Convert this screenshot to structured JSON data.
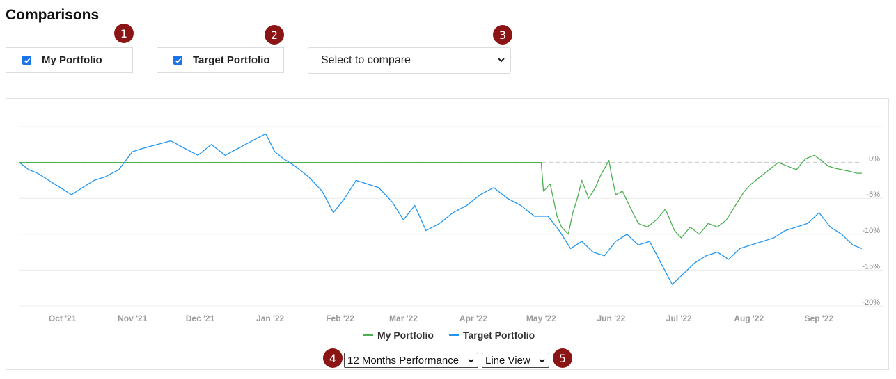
{
  "page": {
    "title": "Comparisons"
  },
  "controls": {
    "my_portfolio_label": "My Portfolio",
    "target_portfolio_label": "Target Portfolio",
    "compare_select_value": "Select to compare",
    "period_select_value": "12 Months Performance",
    "view_select_value": "Line View"
  },
  "badges": [
    "1",
    "2",
    "3",
    "4",
    "5"
  ],
  "colors": {
    "my_portfolio": "#4caf50",
    "target_portfolio": "#2196f3",
    "badge": "#8b1414",
    "checkbox": "#1a73e8"
  },
  "icons": {
    "checkbox": "check-icon",
    "dropdown": "chevron-down-icon"
  },
  "chart_data": {
    "type": "line",
    "title": "",
    "xlabel": "",
    "ylabel": "",
    "x_ticks": [
      "Oct '21",
      "Nov '21",
      "Dec '21",
      "Jan '22",
      "Feb '22",
      "Mar '22",
      "Apr '22",
      "May '22",
      "Jun '22",
      "Jul '22",
      "Aug '22",
      "Sep '22"
    ],
    "y_ticks": [
      "0%",
      "-5%",
      "-10%",
      "-15%",
      "-20%"
    ],
    "ylim": [
      -20,
      5
    ],
    "xlim": [
      "2021-09-12",
      "2022-09-20"
    ],
    "grid": true,
    "legend_position": "bottom",
    "series": [
      {
        "name": "My Portfolio",
        "x": [
          "2021-09-12",
          "2022-05-01",
          "2022-05-02",
          "2022-05-05",
          "2022-05-08",
          "2022-05-10",
          "2022-05-13",
          "2022-05-15",
          "2022-05-17",
          "2022-05-19",
          "2022-05-22",
          "2022-05-25",
          "2022-05-27",
          "2022-05-31",
          "2022-06-01",
          "2022-06-03",
          "2022-06-06",
          "2022-06-09",
          "2022-06-13",
          "2022-06-17",
          "2022-06-21",
          "2022-06-25",
          "2022-06-29",
          "2022-07-02",
          "2022-07-06",
          "2022-07-10",
          "2022-07-14",
          "2022-07-18",
          "2022-07-22",
          "2022-07-26",
          "2022-07-30",
          "2022-08-02",
          "2022-08-06",
          "2022-08-10",
          "2022-08-14",
          "2022-08-18",
          "2022-08-22",
          "2022-08-26",
          "2022-08-30",
          "2022-09-02",
          "2022-09-05",
          "2022-09-08",
          "2022-09-11",
          "2022-09-14",
          "2022-09-18",
          "2022-09-20"
        ],
        "values": [
          0.0,
          0.0,
          -4.0,
          -3.0,
          -7.5,
          -9.0,
          -10.0,
          -7.0,
          -5.0,
          -2.5,
          -5.0,
          -3.5,
          -2.0,
          0.3,
          -1.5,
          -4.5,
          -4.0,
          -6.0,
          -8.5,
          -9.0,
          -8.0,
          -6.5,
          -9.5,
          -10.5,
          -9.0,
          -10.0,
          -8.5,
          -9.0,
          -8.0,
          -6.0,
          -4.0,
          -3.0,
          -2.0,
          -1.0,
          0.0,
          -0.5,
          -1.0,
          0.5,
          1.0,
          0.3,
          -0.5,
          -0.8,
          -1.0,
          -1.2,
          -1.5,
          -1.5
        ]
      },
      {
        "name": "Target Portfolio",
        "x": [
          "2021-09-12",
          "2021-09-16",
          "2021-09-20",
          "2021-09-25",
          "2021-09-30",
          "2021-10-05",
          "2021-10-10",
          "2021-10-15",
          "2021-10-20",
          "2021-10-26",
          "2021-11-01",
          "2021-11-06",
          "2021-11-12",
          "2021-11-18",
          "2021-11-24",
          "2021-11-30",
          "2021-12-06",
          "2021-12-12",
          "2021-12-18",
          "2021-12-24",
          "2021-12-30",
          "2022-01-03",
          "2022-01-07",
          "2022-01-12",
          "2022-01-18",
          "2022-01-24",
          "2022-01-29",
          "2022-02-03",
          "2022-02-08",
          "2022-02-13",
          "2022-02-18",
          "2022-02-24",
          "2022-03-01",
          "2022-03-06",
          "2022-03-11",
          "2022-03-17",
          "2022-03-23",
          "2022-03-29",
          "2022-04-04",
          "2022-04-10",
          "2022-04-16",
          "2022-04-22",
          "2022-04-28",
          "2022-05-04",
          "2022-05-09",
          "2022-05-14",
          "2022-05-19",
          "2022-05-24",
          "2022-05-29",
          "2022-06-03",
          "2022-06-08",
          "2022-06-13",
          "2022-06-18",
          "2022-06-23",
          "2022-06-28",
          "2022-07-03",
          "2022-07-08",
          "2022-07-13",
          "2022-07-18",
          "2022-07-23",
          "2022-07-28",
          "2022-08-02",
          "2022-08-07",
          "2022-08-12",
          "2022-08-17",
          "2022-08-22",
          "2022-08-27",
          "2022-09-01",
          "2022-09-06",
          "2022-09-11",
          "2022-09-16",
          "2022-09-20"
        ],
        "values": [
          0.0,
          -1.0,
          -1.5,
          -2.5,
          -3.5,
          -4.5,
          -3.5,
          -2.5,
          -2.0,
          -1.0,
          1.5,
          2.0,
          2.5,
          3.0,
          2.0,
          1.0,
          2.5,
          1.0,
          2.0,
          3.0,
          4.0,
          1.5,
          0.5,
          -0.5,
          -2.0,
          -4.0,
          -7.0,
          -5.0,
          -2.5,
          -3.0,
          -3.5,
          -5.5,
          -8.0,
          -6.0,
          -9.5,
          -8.5,
          -7.0,
          -6.0,
          -4.5,
          -3.5,
          -5.0,
          -6.0,
          -7.5,
          -7.5,
          -9.5,
          -12.0,
          -11.0,
          -12.5,
          -13.0,
          -11.0,
          -10.0,
          -11.5,
          -11.0,
          -14.0,
          -17.0,
          -15.5,
          -14.0,
          -13.0,
          -12.5,
          -13.5,
          -12.0,
          -11.5,
          -11.0,
          -10.5,
          -9.5,
          -9.0,
          -8.5,
          -7.0,
          -9.0,
          -10.0,
          -11.5,
          -12.0
        ]
      }
    ]
  }
}
